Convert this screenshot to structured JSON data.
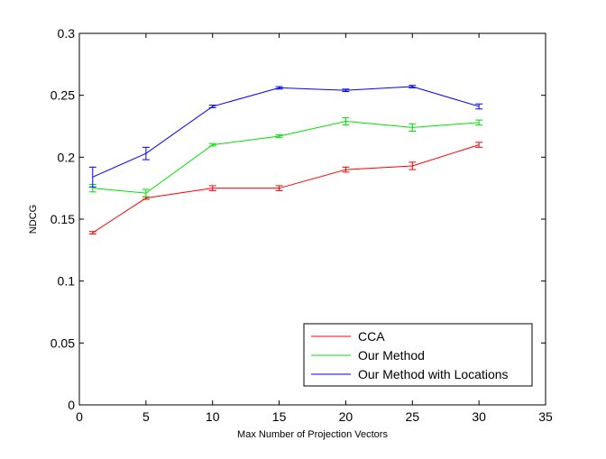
{
  "chart_data": {
    "type": "line",
    "title": "",
    "xlabel": "Max Number of Projection Vectors",
    "ylabel": "NDCG",
    "xlim": [
      0,
      35
    ],
    "ylim": [
      0,
      0.3
    ],
    "xticks": [
      0,
      5,
      10,
      15,
      20,
      25,
      30,
      35
    ],
    "yticks": [
      0,
      0.05,
      0.1,
      0.15,
      0.2,
      0.25,
      0.3
    ],
    "xtick_labels": [
      "0",
      "5",
      "10",
      "15",
      "20",
      "25",
      "30",
      "35"
    ],
    "ytick_labels": [
      "0",
      "0.05",
      "0.1",
      "0.15",
      "0.2",
      "0.25",
      "0.3"
    ],
    "grid": false,
    "legend_position": "bottom-right",
    "x": [
      1,
      5,
      10,
      15,
      20,
      25,
      30
    ],
    "series": [
      {
        "name": "CCA",
        "color": "#ff0000",
        "values": [
          0.139,
          0.167,
          0.175,
          0.175,
          0.19,
          0.193,
          0.21
        ],
        "errors": [
          0.001,
          0.001,
          0.002,
          0.002,
          0.002,
          0.003,
          0.002
        ]
      },
      {
        "name": "Our Method",
        "color": "#00e000",
        "values": [
          0.175,
          0.171,
          0.21,
          0.217,
          0.229,
          0.224,
          0.228
        ],
        "errors": [
          0.003,
          0.003,
          0.001,
          0.001,
          0.003,
          0.003,
          0.002
        ]
      },
      {
        "name": "Our Method with Locations",
        "color": "#0000ff",
        "values": [
          0.184,
          0.203,
          0.241,
          0.256,
          0.254,
          0.257,
          0.241
        ],
        "errors": [
          0.008,
          0.005,
          0.001,
          0.001,
          0.001,
          0.001,
          0.002
        ]
      }
    ]
  }
}
